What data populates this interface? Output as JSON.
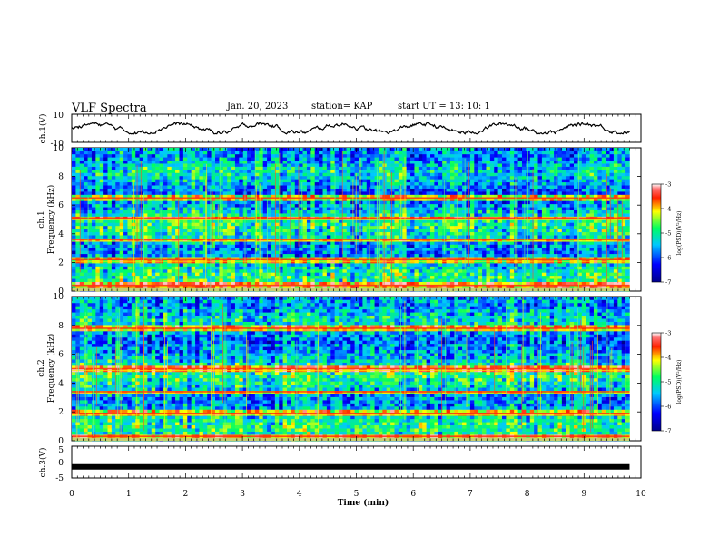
{
  "header": {
    "title": "VLF Spectra",
    "date": "Jan. 20, 2023",
    "station": "station= KAP",
    "start": "start  UT  =   13: 10: 1"
  },
  "chart_data": [
    {
      "panel": "ch1-waveform",
      "type": "line",
      "ylabel": "ch.1(V)",
      "ylim": [
        -10,
        10
      ],
      "yticks": [
        "10",
        "-10"
      ],
      "xlim": [
        0,
        10
      ],
      "series_color": "#000000",
      "amplitude_range": [
        -4,
        4
      ]
    },
    {
      "panel": "ch1-spectrogram",
      "type": "heatmap",
      "ylabel": "ch.1 Frequency (kHz)",
      "ylim": [
        0,
        10
      ],
      "yticks": [
        "0",
        "2",
        "4",
        "6",
        "8",
        "10"
      ],
      "xlim": [
        0,
        9.8
      ],
      "bright_bands_khz": [
        0.4,
        2.2,
        3.6,
        5.1,
        6.5
      ],
      "colorbar": {
        "label": "log(PSD)(V²/Hz)",
        "range": [
          -7,
          -3
        ],
        "ticks": [
          "-3",
          "-4",
          "-5",
          "-6",
          "-7"
        ]
      }
    },
    {
      "panel": "ch2-spectrogram",
      "type": "heatmap",
      "ylabel": "ch.2 Frequency (kHz)",
      "ylim": [
        0,
        10
      ],
      "yticks": [
        "0",
        "2",
        "4",
        "6",
        "8",
        "10"
      ],
      "xlim": [
        0,
        9.8
      ],
      "bright_bands_khz": [
        0.3,
        1.9,
        3.4,
        5.0,
        7.8
      ],
      "colorbar": {
        "label": "log(PSD)(V²/Hz)",
        "range": [
          -7,
          -3
        ],
        "ticks": [
          "-3",
          "-4",
          "-5",
          "-6",
          "-7"
        ]
      }
    },
    {
      "panel": "ch3-waveform",
      "type": "line",
      "ylabel": "ch.3(V)",
      "ylim": [
        -5,
        5
      ],
      "yticks": [
        "5",
        "0",
        "-5"
      ],
      "xlim": [
        0,
        10
      ],
      "constant_value": -1.5,
      "series_color": "#000000"
    }
  ],
  "x_axis": {
    "label": "Time (min)",
    "ticks": [
      "0",
      "1",
      "2",
      "3",
      "4",
      "5",
      "6",
      "7",
      "8",
      "9",
      "10"
    ]
  }
}
